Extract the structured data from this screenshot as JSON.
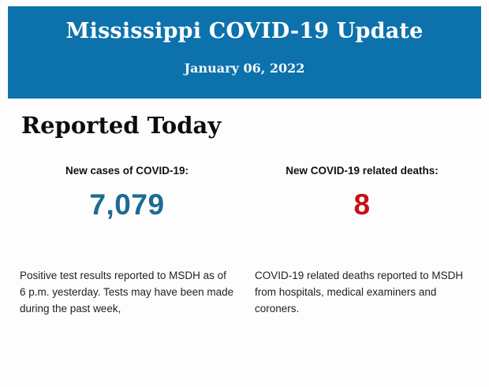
{
  "page": {
    "background": "#fdfdfd"
  },
  "header": {
    "title": "Mississippi COVID-19 Update",
    "date": "January 06, 2022",
    "background_color": "#0d72ac",
    "text_color": "#ffffff"
  },
  "section_title": "Reported Today",
  "stats": [
    {
      "label": "New cases of COVID-19:",
      "value": "7,079",
      "value_color": "#1d6b94",
      "description": "Positive test results reported to MSDH as of 6 p.m. yesterday. Tests may have been made during the past week,"
    },
    {
      "label": "New COVID-19 related deaths:",
      "value": "8",
      "value_color": "#c41212",
      "description": "COVID-19 related deaths reported to MSDH from hospitals, medical examiners and coroners."
    }
  ]
}
